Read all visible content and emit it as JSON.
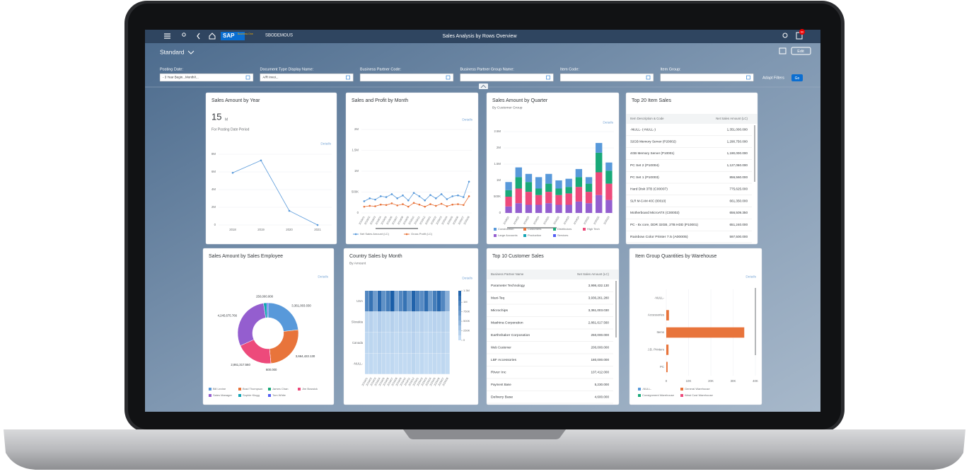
{
  "header": {
    "logo": "SAP",
    "logo_sub": "Business One",
    "company": "SBODEMOUS",
    "title": "Sales Analysis by Rows Overview",
    "notification_count": "60"
  },
  "variant": "Standard",
  "edit": "Edit",
  "filters": [
    {
      "label": "Posting Date:",
      "value": "- 3 Year Begin...Month/I..."
    },
    {
      "label": "Document Type Display Name:",
      "value": "A/R Invoi..."
    },
    {
      "label": "Business Partner Code:"
    },
    {
      "label": "Business Partner Group Name:"
    },
    {
      "label": "Item Code:"
    },
    {
      "label": "Item Group:"
    }
  ],
  "adapt_filters": "Adapt Filters",
  "go": "Go",
  "cards": [
    {
      "type": "line",
      "title": "Sales Amount by Year",
      "kpi": "15",
      "kpi_unit": "M",
      "subtitle": "For Posting Date Period",
      "details": "Details",
      "categories": [
        "2018",
        "2019",
        "2020",
        "2021"
      ],
      "values": [
        5900000,
        7300000,
        1600000,
        0
      ],
      "color": "#5899da",
      "ylim": [
        0,
        8000000
      ],
      "yticks": [
        0,
        {
          "value": 2000000,
          "label": "2M"
        },
        {
          "value": 4000000,
          "label": "4M"
        },
        {
          "value": 6000000,
          "label": "6M"
        },
        {
          "value": 8000000,
          "label": "8M"
        }
      ]
    },
    {
      "type": "line",
      "title": "Sales and Profit by Month",
      "details": "Details",
      "categories": [
        "2019/01",
        "2019/02",
        "2019/03",
        "2019/04",
        "2019/05",
        "2019/06",
        "2019/07",
        "2019/08",
        "2019/09",
        "2019/10",
        "2019/11",
        "2019/12",
        "2020/01",
        "2020/02",
        "2020/03",
        "2020/04",
        "2020/05",
        "2020/06",
        "2020/07",
        "2020/08"
      ],
      "series": [
        {
          "name": "Net Sales Amount (LC)",
          "color": "#5899da",
          "values": [
            280000,
            350000,
            320000,
            400000,
            380000,
            450000,
            350000,
            420000,
            300000,
            480000,
            400000,
            300000,
            430000,
            350000,
            450000,
            330000,
            400000,
            420000,
            380000,
            750000
          ]
        },
        {
          "name": "Gross Profit (LC)",
          "color": "#e8743b",
          "values": [
            150000,
            170000,
            160000,
            200000,
            190000,
            230000,
            180000,
            210000,
            150000,
            240000,
            200000,
            150000,
            210000,
            170000,
            220000,
            160000,
            200000,
            210000,
            190000,
            400000
          ]
        }
      ],
      "ylim": [
        0,
        2000000
      ],
      "yticks": [
        0,
        {
          "value": 500000,
          "label": "500K"
        },
        {
          "value": 1000000,
          "label": "1M"
        },
        {
          "value": 1500000,
          "label": "1.5M"
        },
        {
          "value": 2000000,
          "label": "2M"
        }
      ]
    },
    {
      "type": "stacked-bar",
      "title": "Sales Amount by Quarter",
      "subtitle": "By Customer Group",
      "details": "Details",
      "categories": [
        "2018Q1",
        "2018Q2",
        "2018Q3",
        "2018Q4",
        "2019Q1",
        "2019Q2",
        "2019Q3",
        "2019Q4",
        "2020Q1",
        "2020Q2",
        "2020Q3"
      ],
      "series": [
        {
          "name": "Construction",
          "color": "#5899da",
          "values": [
            250000,
            300000,
            250000,
            350000,
            300000,
            250000,
            250000,
            250000,
            200000,
            300000,
            250000
          ]
        },
        {
          "name": "Customers",
          "color": "#e8743b",
          "values": [
            0,
            0,
            0,
            0,
            0,
            0,
            0,
            0,
            0,
            0,
            0
          ]
        },
        {
          "name": "Distributors",
          "color": "#19a979",
          "values": [
            200000,
            350000,
            300000,
            200000,
            250000,
            200000,
            200000,
            300000,
            250000,
            600000,
            400000
          ]
        },
        {
          "name": "High Tech",
          "color": "#ed4a7b",
          "values": [
            300000,
            450000,
            400000,
            300000,
            350000,
            300000,
            350000,
            450000,
            350000,
            700000,
            500000
          ]
        },
        {
          "name": "Large Accounts",
          "color": "#945ecf",
          "values": [
            200000,
            300000,
            250000,
            250000,
            300000,
            250000,
            250000,
            350000,
            300000,
            550000,
            400000
          ]
        },
        {
          "name": "Production",
          "color": "#13a4b4",
          "values": [
            0,
            0,
            0,
            0,
            0,
            0,
            0,
            0,
            0,
            0,
            0
          ]
        },
        {
          "name": "Services",
          "color": "#525df4",
          "values": [
            0,
            0,
            0,
            0,
            0,
            0,
            0,
            0,
            0,
            0,
            0
          ]
        }
      ],
      "ylim": [
        0,
        2500000
      ],
      "yticks": [
        0,
        {
          "value": 500000,
          "label": "500K"
        },
        {
          "value": 1000000,
          "label": "1M"
        },
        {
          "value": 1500000,
          "label": "1.5M"
        },
        {
          "value": 2000000,
          "label": "2M"
        },
        {
          "value": 2500000,
          "label": "2.5M"
        }
      ]
    },
    {
      "type": "table",
      "title": "Top 20 Item Sales",
      "columns": [
        "Item Description & Code",
        "Net Sales Amount (LC)"
      ],
      "rows": [
        [
          "-NULL- (-NULL-)",
          "1,351,000.000"
        ],
        [
          "32GB Memory Server (P20002)",
          "1,290,750.000"
        ],
        [
          "4GB Memory Server (P10001)",
          "1,190,000.000"
        ],
        [
          "PC Set 2 (P10004)",
          "1,127,060.000"
        ],
        [
          "PC Set 1 (P10003)",
          "856,560.000"
        ],
        [
          "Hard Disk 3TB (C00007)",
          "775,625.000"
        ],
        [
          "SLR M-CAM 40C (00010)",
          "661,350.000"
        ],
        [
          "Motherboard MicroATX (C00002)",
          "656,509.350"
        ],
        [
          "PC - 8x core, DDR 32GB, 2TB HDD (P10001)",
          "651,240.000"
        ],
        [
          "Rainbow Color Printer 7.5 (A00005)",
          "597,500.000"
        ]
      ]
    },
    {
      "type": "donut",
      "title": "Sales Amount by Sales Employee",
      "details": "Details",
      "categories": [
        "Bill Levine",
        "Brad Thompson",
        "James Chan",
        "Jim Boswick",
        "Sales Manager",
        "Sophie Klogg",
        "Tom White"
      ],
      "values": [
        3361003.03,
        3664422.13,
        600,
        2861317.56,
        4245675.766,
        250000,
        100000
      ],
      "value_labels": [
        "3,361,003.030",
        "3,664,422.130",
        "600.000",
        "2,861,317.560",
        "4,245,675.766",
        "250,000.000",
        null
      ],
      "colors": [
        "#5899da",
        "#e8743b",
        "#19a979",
        "#ed4a7b",
        "#945ecf",
        "#13a4b4",
        "#525df4"
      ]
    },
    {
      "type": "heatmap",
      "title": "Country Sales by Month",
      "subtitle": "By Amount",
      "details": "Details",
      "categories": [
        "2019/01",
        "2019/02",
        "2019/03",
        "2019/04",
        "2019/05",
        "2019/06",
        "2019/07",
        "2019/08",
        "2019/09",
        "2019/10",
        "2019/11",
        "2019/12",
        "2020/01",
        "2020/02",
        "2020/03",
        "2020/04",
        "2020/05",
        "2020/06",
        "2020/07",
        "2020/08"
      ],
      "rows": [
        "USA",
        "Slovakia",
        "Canada",
        "-NULL-"
      ],
      "values": [
        [
          900000,
          1100000,
          700000,
          1200000,
          800000,
          1000000,
          1300000,
          600000,
          900000,
          1100000,
          750000,
          1250000,
          950000,
          850000,
          1150000,
          700000,
          1000000,
          1200000,
          900000,
          500000
        ],
        [
          150000,
          180000,
          120000,
          200000,
          160000,
          140000,
          190000,
          130000,
          170000,
          150000,
          160000,
          200000,
          140000,
          180000,
          130000,
          150000,
          170000,
          160000,
          190000,
          140000
        ],
        [
          120000,
          140000,
          110000,
          160000,
          130000,
          120000,
          150000,
          100000,
          140000,
          120000,
          130000,
          170000,
          110000,
          150000,
          100000,
          120000,
          140000,
          130000,
          160000,
          110000
        ],
        [
          100000,
          120000,
          90000,
          130000,
          110000,
          100000,
          120000,
          80000,
          110000,
          100000,
          110000,
          140000,
          90000,
          120000,
          80000,
          100000,
          110000,
          100000,
          130000,
          90000
        ]
      ],
      "scale_ticks": [
        0,
        {
          "value": 250000,
          "label": "250K"
        },
        {
          "value": 500000,
          "label": "500K"
        },
        {
          "value": 750000,
          "label": "750K"
        },
        {
          "value": 1000000,
          "label": "1M"
        },
        {
          "value": 1300000,
          "label": "1.3M"
        }
      ]
    },
    {
      "type": "table",
      "title": "Top 10 Customer Sales",
      "columns": [
        "Business Partner Name",
        "Net Sales Amount (LC)"
      ],
      "rows": [
        [
          "Parameter Technology",
          "3,998,432.130"
        ],
        [
          "Maxi-Teq",
          "3,936,261.280"
        ],
        [
          "Microchips",
          "3,361,003.030"
        ],
        [
          "Mashina Corporation",
          "2,861,617.560"
        ],
        [
          "Earthshaker Corporation",
          "250,000.000"
        ],
        [
          "Web Customer",
          "200,000.000"
        ],
        [
          "LBF Accessories",
          "180,000.000"
        ],
        [
          "River Inc",
          "107,412.000"
        ],
        [
          "Payment Base",
          "5,230.000"
        ],
        [
          "Delivery Base",
          "4,600.000"
        ]
      ]
    },
    {
      "type": "hbar",
      "title": "Item Group Quantities by Warehouse",
      "details": "Details",
      "categories": [
        "-NULL-",
        "Accessories",
        "Items",
        "J.B. Printers",
        "PC"
      ],
      "series": [
        {
          "name": "-NULL-",
          "color": "#5899da",
          "values": [
            0,
            0,
            0,
            0,
            0
          ]
        },
        {
          "name": "General Warehouse",
          "color": "#e8743b",
          "values": [
            0,
            1200,
            35000,
            1000,
            600
          ]
        },
        {
          "name": "Consignment Warehouse",
          "color": "#19a979",
          "values": [
            0,
            0,
            0,
            0,
            0
          ]
        },
        {
          "name": "West Cost Warehouse",
          "color": "#ed4a7b",
          "values": [
            0,
            0,
            0,
            0,
            0
          ]
        }
      ],
      "xlim": [
        0,
        40000
      ],
      "xticks": [
        0,
        {
          "value": 10000,
          "label": "10K"
        },
        {
          "value": 20000,
          "label": "20K"
        },
        {
          "value": 30000,
          "label": "30K"
        },
        {
          "value": 40000,
          "label": "40K"
        }
      ]
    }
  ]
}
